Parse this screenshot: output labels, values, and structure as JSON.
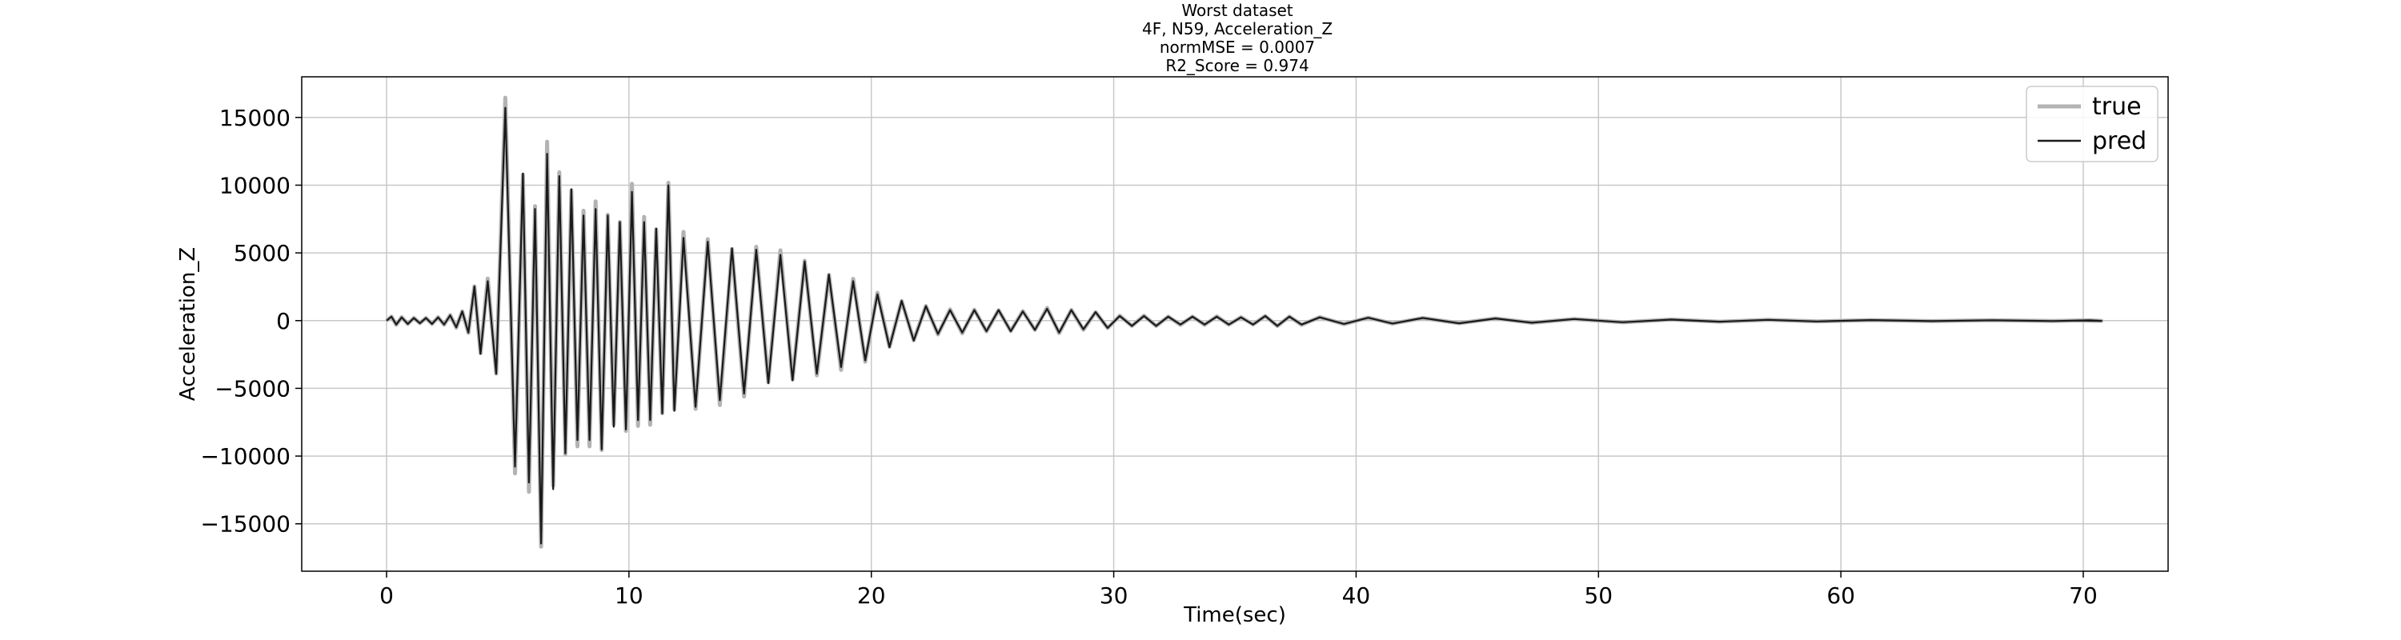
{
  "chart_data": {
    "type": "line",
    "title_lines": [
      "Worst dataset",
      "4F, N59, Acceleration_Z",
      "normMSE = 0.0007",
      "R2_Score = 0.974"
    ],
    "xlabel": "Time(sec)",
    "ylabel": "Acceleration_Z",
    "xlim": [
      -3.5,
      73.5
    ],
    "ylim": [
      -18500,
      18000
    ],
    "x_ticks": [
      0,
      10,
      20,
      30,
      40,
      50,
      60,
      70
    ],
    "y_ticks": [
      -15000,
      -10000,
      -5000,
      0,
      5000,
      10000,
      15000
    ],
    "x_tick_labels": [
      "0",
      "10",
      "20",
      "30",
      "40",
      "50",
      "60",
      "70"
    ],
    "y_tick_labels": [
      "−15000",
      "−10000",
      "−5000",
      "0",
      "5000",
      "10000",
      "15000"
    ],
    "grid": true,
    "legend_position": "top-right",
    "series": [
      {
        "name": "true",
        "color": "#b3b3b3"
      },
      {
        "name": "pred",
        "color": "#1a1a1a"
      }
    ],
    "peaks": {
      "t": [
        0.1,
        0.5,
        1.0,
        1.5,
        2.0,
        2.5,
        3.0,
        3.5,
        4.0,
        4.7,
        5.5,
        6.0,
        6.5,
        7.0,
        7.5,
        8.0,
        8.5,
        9.0,
        9.5,
        10.0,
        10.5,
        11.0,
        11.5,
        12.0,
        13.0,
        14.0,
        15.0,
        16.0,
        17.0,
        18.0,
        19.0,
        20.0,
        21.0,
        22.0,
        23.0,
        24.0,
        25.0,
        26.0,
        27.0,
        28.0,
        29.0,
        30.0,
        31.0,
        32.0,
        33.0,
        34.0,
        35.0,
        36.0,
        37.0,
        38.0,
        40.0,
        42.0,
        45.0,
        48.0,
        52.0,
        56.0,
        60.0,
        65.0,
        70.0
      ],
      "pos": [
        300,
        250,
        200,
        200,
        250,
        400,
        700,
        2600,
        3000,
        16200,
        11200,
        8500,
        12700,
        11000,
        10000,
        8000,
        8500,
        8000,
        7500,
        9800,
        7500,
        7000,
        10300,
        6300,
        6000,
        5500,
        5400,
        5000,
        4500,
        3500,
        3000,
        2000,
        1500,
        1100,
        800,
        800,
        800,
        700,
        900,
        800,
        650,
        350,
        350,
        300,
        300,
        300,
        250,
        350,
        300,
        250,
        220,
        200,
        160,
        120,
        80,
        60,
        40,
        30,
        20
      ],
      "neg": [
        -300,
        -250,
        -200,
        -250,
        -300,
        -500,
        -900,
        -2500,
        -4000,
        -11000,
        -12200,
        -16800,
        -12700,
        -10000,
        -9000,
        -9000,
        -9700,
        -8000,
        -8200,
        -7500,
        -7500,
        -7000,
        -6800,
        -6500,
        -6000,
        -5500,
        -4700,
        -4500,
        -4000,
        -3500,
        -3000,
        -2000,
        -1500,
        -1000,
        -900,
        -800,
        -800,
        -700,
        -900,
        -650,
        -550,
        -400,
        -400,
        -300,
        -300,
        -300,
        -300,
        -400,
        -300,
        -250,
        -220,
        -200,
        -160,
        -120,
        -80,
        -60,
        -40,
        -30,
        -20
      ]
    }
  }
}
